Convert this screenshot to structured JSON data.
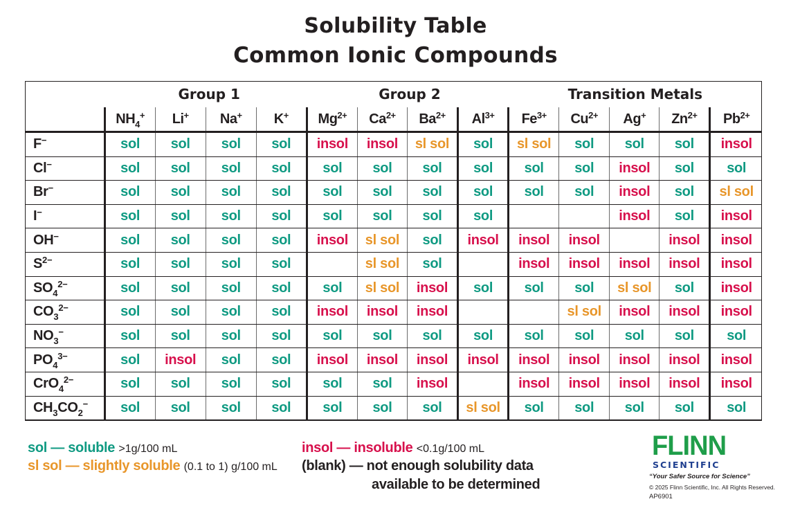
{
  "title": {
    "line1": "Solubility Table",
    "line2": "Common Ionic Compounds"
  },
  "groups": [
    {
      "label": "Group 1"
    },
    {
      "label": "Group 2"
    },
    {
      "label": "Transition Metals"
    }
  ],
  "cations": [
    {
      "base": "NH",
      "sub": "4",
      "sup": "+"
    },
    {
      "base": "Li",
      "sub": "",
      "sup": "+"
    },
    {
      "base": "Na",
      "sub": "",
      "sup": "+"
    },
    {
      "base": "K",
      "sub": "",
      "sup": "+"
    },
    {
      "base": "Mg",
      "sub": "",
      "sup": "2+"
    },
    {
      "base": "Ca",
      "sub": "",
      "sup": "2+"
    },
    {
      "base": "Ba",
      "sub": "",
      "sup": "2+"
    },
    {
      "base": "Al",
      "sub": "",
      "sup": "3+"
    },
    {
      "base": "Fe",
      "sub": "",
      "sup": "3+"
    },
    {
      "base": "Cu",
      "sub": "",
      "sup": "2+"
    },
    {
      "base": "Ag",
      "sub": "",
      "sup": "+"
    },
    {
      "base": "Zn",
      "sub": "",
      "sup": "2+"
    },
    {
      "base": "Pb",
      "sub": "",
      "sup": "2+"
    }
  ],
  "rows": [
    {
      "anion": {
        "parts": [
          [
            "F",
            ""
          ],
          [
            "",
            "−"
          ]
        ]
      },
      "cells": [
        "sol",
        "sol",
        "sol",
        "sol",
        "insol",
        "insol",
        "sl sol",
        "sol",
        "sl sol",
        "sol",
        "sol",
        "sol",
        "insol"
      ]
    },
    {
      "anion": {
        "parts": [
          [
            "Cl",
            ""
          ],
          [
            "",
            "−"
          ]
        ]
      },
      "cells": [
        "sol",
        "sol",
        "sol",
        "sol",
        "sol",
        "sol",
        "sol",
        "sol",
        "sol",
        "sol",
        "insol",
        "sol",
        "sol"
      ]
    },
    {
      "anion": {
        "parts": [
          [
            "Br",
            ""
          ],
          [
            "",
            "−"
          ]
        ]
      },
      "cells": [
        "sol",
        "sol",
        "sol",
        "sol",
        "sol",
        "sol",
        "sol",
        "sol",
        "sol",
        "sol",
        "insol",
        "sol",
        "sl sol"
      ]
    },
    {
      "anion": {
        "parts": [
          [
            "I",
            ""
          ],
          [
            "",
            "−"
          ]
        ]
      },
      "cells": [
        "sol",
        "sol",
        "sol",
        "sol",
        "sol",
        "sol",
        "sol",
        "sol",
        "",
        "",
        "insol",
        "sol",
        "insol"
      ]
    },
    {
      "anion": {
        "parts": [
          [
            "OH",
            ""
          ],
          [
            "",
            "−"
          ]
        ]
      },
      "cells": [
        "sol",
        "sol",
        "sol",
        "sol",
        "insol",
        "sl sol",
        "sol",
        "insol",
        "insol",
        "insol",
        "",
        "insol",
        "insol"
      ]
    },
    {
      "anion": {
        "parts": [
          [
            "S",
            ""
          ],
          [
            "",
            "2−"
          ]
        ]
      },
      "cells": [
        "sol",
        "sol",
        "sol",
        "sol",
        "",
        "sl sol",
        "sol",
        "",
        "insol",
        "insol",
        "insol",
        "insol",
        "insol"
      ]
    },
    {
      "anion": {
        "parts": [
          [
            "SO",
            "4"
          ],
          [
            "",
            "2−"
          ]
        ]
      },
      "cells": [
        "sol",
        "sol",
        "sol",
        "sol",
        "sol",
        "sl sol",
        "insol",
        "sol",
        "sol",
        "sol",
        "sl sol",
        "sol",
        "insol"
      ]
    },
    {
      "anion": {
        "parts": [
          [
            "CO",
            "3"
          ],
          [
            "",
            "2−"
          ]
        ]
      },
      "cells": [
        "sol",
        "sol",
        "sol",
        "sol",
        "insol",
        "insol",
        "insol",
        "",
        "",
        "sl sol",
        "insol",
        "insol",
        "insol"
      ]
    },
    {
      "anion": {
        "parts": [
          [
            "NO",
            "3"
          ],
          [
            "",
            "−"
          ]
        ]
      },
      "cells": [
        "sol",
        "sol",
        "sol",
        "sol",
        "sol",
        "sol",
        "sol",
        "sol",
        "sol",
        "sol",
        "sol",
        "sol",
        "sol"
      ]
    },
    {
      "anion": {
        "parts": [
          [
            "PO",
            "4"
          ],
          [
            "",
            "3−"
          ]
        ]
      },
      "cells": [
        "sol",
        "insol",
        "sol",
        "sol",
        "insol",
        "insol",
        "insol",
        "insol",
        "insol",
        "insol",
        "insol",
        "insol",
        "insol"
      ]
    },
    {
      "anion": {
        "parts": [
          [
            "CrO",
            "4"
          ],
          [
            "",
            "2−"
          ]
        ]
      },
      "cells": [
        "sol",
        "sol",
        "sol",
        "sol",
        "sol",
        "sol",
        "insol",
        "",
        "insol",
        "insol",
        "insol",
        "insol",
        "insol"
      ]
    },
    {
      "anion": {
        "parts": [
          [
            "CH",
            "3"
          ],
          [
            "CO",
            "2"
          ],
          [
            "",
            "−"
          ]
        ]
      },
      "cells": [
        "sol",
        "sol",
        "sol",
        "sol",
        "sol",
        "sol",
        "sol",
        "sl sol",
        "sol",
        "sol",
        "sol",
        "sol",
        "sol"
      ]
    }
  ],
  "legend": {
    "sol": {
      "term": "sol — soluble",
      "detail": ">1g/100 mL"
    },
    "slsol": {
      "term": "sl sol — slightly soluble",
      "detail": "(0.1 to 1) g/100 mL"
    },
    "insol": {
      "term": "insol — insoluble",
      "detail": "<0.1g/100 mL"
    },
    "blank": {
      "term": "(blank) — not enough solubility data",
      "line2": "available to be determined"
    }
  },
  "colors": {
    "sol": "#0f9a82",
    "slsol": "#e8962a",
    "insol": "#d7104c",
    "text": "#231f20",
    "logo_green": "#1f9e4a",
    "logo_blue": "#1f3f8f"
  },
  "logo": {
    "name": "FLINN",
    "sub": "SCIENTIFIC",
    "tagline": "“Your Safer Source for Science”",
    "copyright": "© 2025 Flinn Scientific, Inc. All Rights Reserved.",
    "code": "AP6901"
  }
}
